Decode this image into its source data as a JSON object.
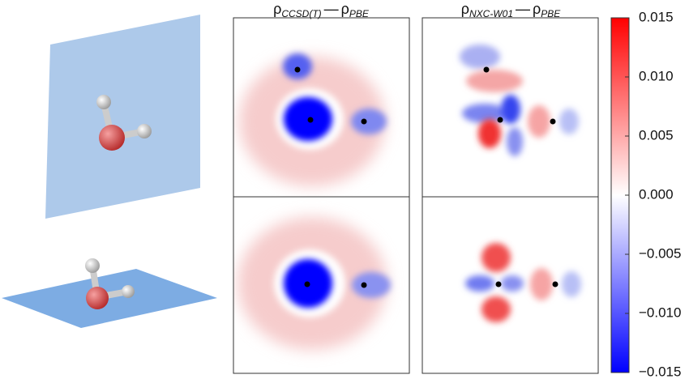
{
  "chart_data": {
    "type": "heatmap",
    "panel_titles": [
      {
        "rho1": "ρ",
        "sub1": "CCSD(T)",
        "dash": "—",
        "rho2": "ρ",
        "sub2": "PBE"
      },
      {
        "rho1": "ρ",
        "sub1": "NXC-W01",
        "dash": "—",
        "rho2": "ρ",
        "sub2": "PBE"
      }
    ],
    "colorbar": {
      "colors": [
        "#0000ff",
        "#ffffff",
        "#ff0000"
      ],
      "ylim": [
        -0.015,
        0.015
      ],
      "yticks": [
        {
          "value": -0.015,
          "label": "−0.015"
        },
        {
          "value": -0.01,
          "label": "−0.010"
        },
        {
          "value": -0.005,
          "label": "−0.005"
        },
        {
          "value": 0,
          "label": "0.000"
        },
        0.005,
        {
          "value": 0.01,
          "label": "0.010"
        },
        0.015
      ]
    }
  }
}
